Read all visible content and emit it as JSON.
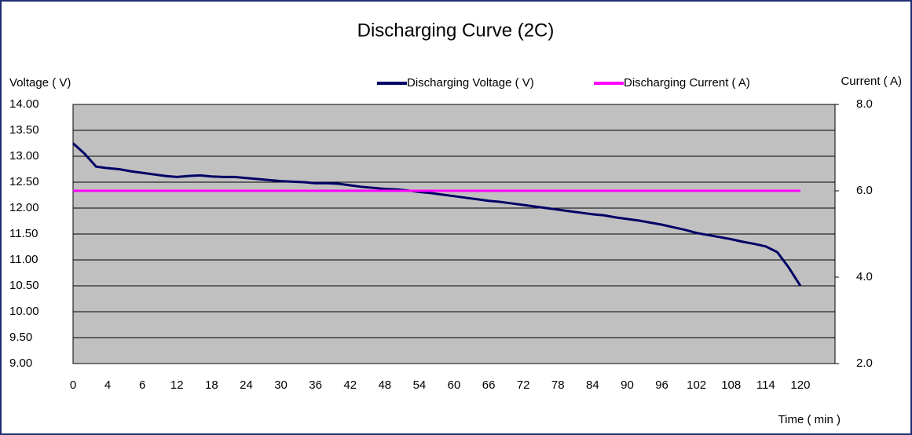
{
  "chart_data": {
    "type": "line",
    "title": "Discharging Curve (2C)",
    "y_label": "Voltage ( V)",
    "y2_label": "Current ( A)",
    "x_label": "Time ( min )",
    "categories": [
      "0",
      null,
      null,
      "4",
      null,
      null,
      "6",
      null,
      null,
      "12",
      null,
      null,
      "18",
      null,
      null,
      "24",
      null,
      null,
      "30",
      null,
      null,
      "36",
      null,
      null,
      "42",
      null,
      null,
      "48",
      null,
      null,
      "54",
      null,
      null,
      "60",
      null,
      null,
      "66",
      null,
      null,
      "72",
      null,
      null,
      "78",
      null,
      null,
      "84",
      null,
      null,
      "90",
      null,
      null,
      "96",
      null,
      null,
      "102",
      null,
      null,
      "108",
      null,
      null,
      "114",
      null,
      null,
      "120"
    ],
    "series": [
      {
        "name": "Discharging Voltage ( V)",
        "color": "#000066",
        "values": [
          13.25,
          13.05,
          12.8,
          12.77,
          12.75,
          12.71,
          12.68,
          12.65,
          12.62,
          12.6,
          12.62,
          12.63,
          12.61,
          12.6,
          12.6,
          12.58,
          12.56,
          12.54,
          12.52,
          12.51,
          12.5,
          12.48,
          12.48,
          12.47,
          12.44,
          12.41,
          12.39,
          12.37,
          12.36,
          12.34,
          12.31,
          12.29,
          12.26,
          12.23,
          12.2,
          12.17,
          12.14,
          12.12,
          12.09,
          12.06,
          12.03,
          12.0,
          11.97,
          11.94,
          11.91,
          11.88,
          11.86,
          11.82,
          11.79,
          11.76,
          11.72,
          11.68,
          11.63,
          11.58,
          11.52,
          11.48,
          11.44,
          11.4,
          11.35,
          11.31,
          11.26,
          11.15,
          10.85,
          10.5
        ]
      },
      {
        "name": "Discharging Current ( A)",
        "color": "#ff00ff",
        "axis": "y2",
        "values": [
          6,
          6,
          6,
          6,
          6,
          6,
          6,
          6,
          6,
          6,
          6,
          6,
          6,
          6,
          6,
          6,
          6,
          6,
          6,
          6,
          6,
          6,
          6,
          6,
          6,
          6,
          6,
          6,
          6,
          6,
          6,
          6,
          6,
          6,
          6,
          6,
          6,
          6,
          6,
          6,
          6,
          6,
          6,
          6,
          6,
          6,
          6,
          6,
          6,
          6,
          6,
          6,
          6,
          6,
          6,
          6,
          6,
          6,
          6,
          6,
          6,
          6,
          6,
          6
        ]
      }
    ],
    "ylim": [
      9,
      14
    ],
    "yticks": [
      {
        "value": 9,
        "label": "9.00"
      },
      {
        "value": 9.5,
        "label": "9.50"
      },
      {
        "value": 10,
        "label": "10.00"
      },
      {
        "value": 10.5,
        "label": "10.50"
      },
      {
        "value": 11,
        "label": "11.00"
      },
      {
        "value": 11.5,
        "label": "11.50"
      },
      {
        "value": 12,
        "label": "12.00"
      },
      {
        "value": 12.5,
        "label": "12.50"
      },
      {
        "value": 13,
        "label": "13.00"
      },
      {
        "value": 13.5,
        "label": "13.50"
      },
      {
        "value": 14,
        "label": "14.00"
      }
    ],
    "y2lim": [
      2,
      8
    ],
    "y2ticks": [
      {
        "value": 2,
        "label": "2.0"
      },
      {
        "value": 4,
        "label": "4.0"
      },
      {
        "value": 6,
        "label": "6.0"
      },
      {
        "value": 8,
        "label": "8.0"
      }
    ],
    "grid": true,
    "legend": "top"
  }
}
